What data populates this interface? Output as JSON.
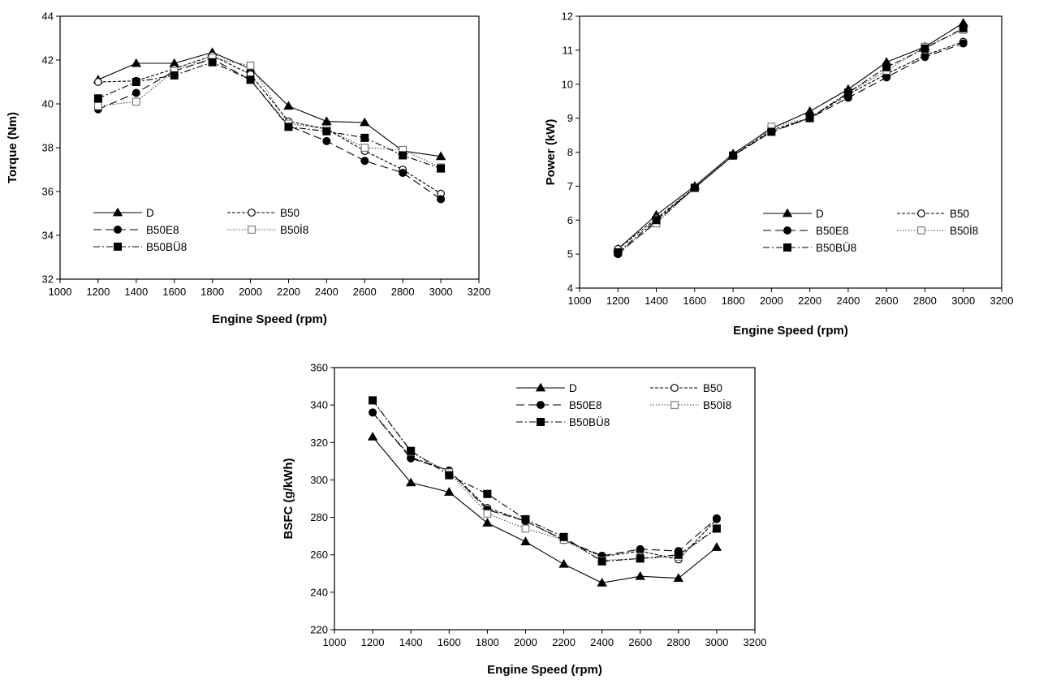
{
  "chart_data": [
    {
      "type": "line",
      "xlabel": "Engine Speed (rpm)",
      "ylabel": "Torque (Nm)",
      "xlim": [
        1000,
        3200
      ],
      "ylim": [
        32,
        44
      ],
      "xticks": [
        1000,
        1200,
        1400,
        1600,
        1800,
        2000,
        2200,
        2400,
        2600,
        2800,
        3000,
        3200
      ],
      "yticks": [
        32,
        34,
        36,
        38,
        40,
        42,
        44
      ],
      "grid": false,
      "legend": "bottom-left",
      "x": [
        1200,
        1400,
        1600,
        1800,
        2000,
        2200,
        2400,
        2600,
        2800,
        3000
      ],
      "series": [
        {
          "name": "D",
          "marker": "triangle",
          "dash": "solid",
          "values": [
            41.1,
            41.85,
            41.85,
            42.35,
            41.6,
            39.9,
            39.2,
            39.15,
            37.85,
            37.6
          ]
        },
        {
          "name": "B50",
          "marker": "circle-open",
          "dash": "dashed",
          "values": [
            41.0,
            41.05,
            41.6,
            42.2,
            41.35,
            39.2,
            38.85,
            37.85,
            37.0,
            35.9
          ]
        },
        {
          "name": "B50E8",
          "marker": "circle",
          "dash": "longdash",
          "values": [
            39.75,
            40.5,
            41.5,
            42.05,
            41.1,
            39.0,
            38.3,
            37.4,
            36.85,
            35.65
          ]
        },
        {
          "name": "B50İ8",
          "marker": "square-open",
          "dash": "dotted",
          "values": [
            39.9,
            40.1,
            41.5,
            42.1,
            41.75,
            39.1,
            38.85,
            38.0,
            37.9,
            37.1
          ]
        },
        {
          "name": "B50BÜ8",
          "marker": "square",
          "dash": "dashdot",
          "values": [
            40.25,
            41.0,
            41.3,
            41.9,
            41.1,
            38.95,
            38.75,
            38.45,
            37.65,
            37.05
          ]
        }
      ]
    },
    {
      "type": "line",
      "xlabel": "Engine Speed (rpm)",
      "ylabel": "Power  (kW)",
      "xlim": [
        1000,
        3200
      ],
      "ylim": [
        4,
        12
      ],
      "xticks": [
        1000,
        1200,
        1400,
        1600,
        1800,
        2000,
        2200,
        2400,
        2600,
        2800,
        3000,
        3200
      ],
      "yticks": [
        4,
        5,
        6,
        7,
        8,
        9,
        10,
        11,
        12
      ],
      "grid": false,
      "legend": "bottom-right",
      "x": [
        1200,
        1400,
        1600,
        1800,
        2000,
        2200,
        2400,
        2600,
        2800,
        3000
      ],
      "series": [
        {
          "name": "D",
          "marker": "triangle",
          "dash": "solid",
          "values": [
            5.15,
            6.15,
            7.0,
            7.95,
            8.7,
            9.2,
            9.85,
            10.65,
            11.1,
            11.8
          ]
        },
        {
          "name": "B50",
          "marker": "circle-open",
          "dash": "dashed",
          "values": [
            5.15,
            6.05,
            6.95,
            7.9,
            8.65,
            9.0,
            9.7,
            10.3,
            10.85,
            11.25
          ]
        },
        {
          "name": "B50E8",
          "marker": "circle",
          "dash": "longdash",
          "values": [
            5.0,
            5.95,
            6.95,
            7.9,
            8.6,
            9.0,
            9.6,
            10.2,
            10.8,
            11.2
          ]
        },
        {
          "name": "B50İ8",
          "marker": "square-open",
          "dash": "dotted",
          "values": [
            5.05,
            5.9,
            6.95,
            7.9,
            8.75,
            9.0,
            9.75,
            10.4,
            11.1,
            11.6
          ]
        },
        {
          "name": "B50BÜ8",
          "marker": "square",
          "dash": "dashdot",
          "values": [
            5.05,
            6.0,
            6.95,
            7.9,
            8.6,
            9.0,
            9.75,
            10.5,
            11.05,
            11.65
          ]
        }
      ]
    },
    {
      "type": "line",
      "xlabel": "Engine Speed (rpm)",
      "ylabel": "BSFC (g/kWh)",
      "xlim": [
        1000,
        3200
      ],
      "ylim": [
        220,
        360
      ],
      "xticks": [
        1000,
        1200,
        1400,
        1600,
        1800,
        2000,
        2200,
        2400,
        2600,
        2800,
        3000,
        3200
      ],
      "yticks": [
        220,
        240,
        260,
        280,
        300,
        320,
        340,
        360
      ],
      "grid": false,
      "legend": "top-right",
      "x": [
        1200,
        1400,
        1600,
        1800,
        2000,
        2200,
        2400,
        2600,
        2800,
        3000
      ],
      "series": [
        {
          "name": "D",
          "marker": "triangle",
          "dash": "solid",
          "values": [
            323,
            298.5,
            293.5,
            277,
            267,
            255,
            245,
            248.5,
            247.5,
            264
          ]
        },
        {
          "name": "B50",
          "marker": "circle-open",
          "dash": "dashed",
          "values": [
            336,
            312,
            305,
            285,
            278,
            268,
            259,
            262,
            257.5,
            279
          ]
        },
        {
          "name": "B50E8",
          "marker": "circle",
          "dash": "longdash",
          "values": [
            336,
            311.5,
            305,
            284,
            278,
            268,
            259.5,
            263,
            262,
            279.5
          ]
        },
        {
          "name": "B50İ8",
          "marker": "square-open",
          "dash": "dotted",
          "values": [
            342.5,
            315,
            304,
            282,
            274,
            268,
            257,
            258,
            259,
            274
          ]
        },
        {
          "name": "B50BÜ8",
          "marker": "square",
          "dash": "dashdot",
          "values": [
            342.5,
            315.5,
            302.5,
            292.5,
            279,
            269.5,
            256.5,
            258,
            260,
            274
          ]
        }
      ]
    }
  ]
}
